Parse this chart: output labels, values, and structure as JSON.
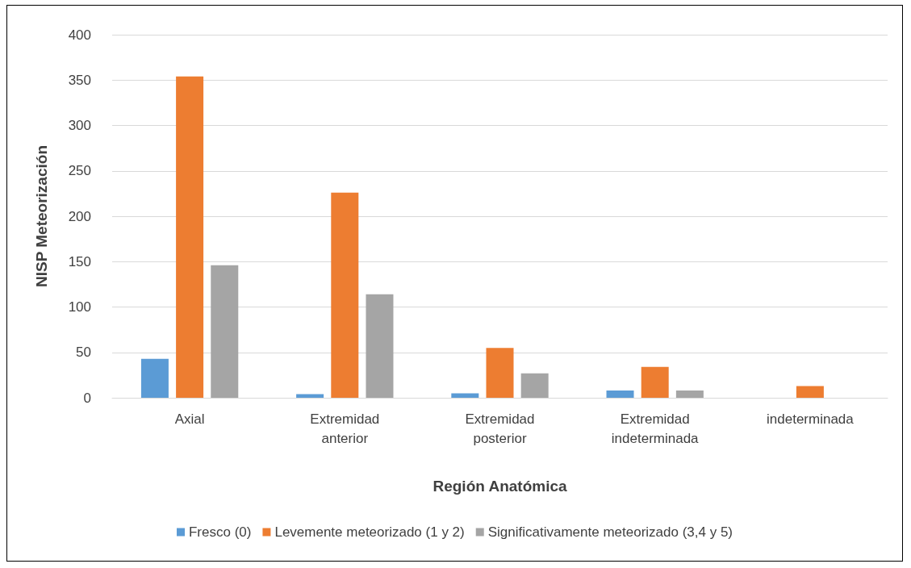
{
  "chart_data": {
    "type": "bar",
    "xlabel": "Región Anatómica",
    "ylabel": "NISP Meteorización",
    "categories": [
      "Axial",
      "Extremidad\nanterior",
      "Extremidad\nposterior",
      "Extremidad\nindeterminada",
      "indeterminada"
    ],
    "series": [
      {
        "name": "Fresco (0)",
        "color": "#5b9bd5",
        "values": [
          43,
          4,
          5,
          8,
          0
        ]
      },
      {
        "name": "Levemente meteorizado (1 y 2)",
        "color": "#ed7d31",
        "values": [
          354,
          226,
          55,
          34,
          13
        ]
      },
      {
        "name": "Significativamente meteorizado (3,4 y 5)",
        "color": "#a5a5a5",
        "values": [
          146,
          114,
          27,
          8,
          0
        ]
      }
    ],
    "ylim": [
      0,
      400
    ],
    "yticks": [
      0,
      50,
      100,
      150,
      200,
      250,
      300,
      350,
      400
    ],
    "grid": "y",
    "legend": "bottom"
  }
}
